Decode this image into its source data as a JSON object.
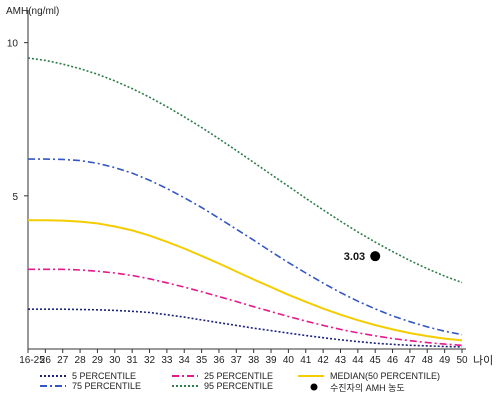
{
  "chart_data": {
    "type": "line",
    "title": "",
    "ylabel": "AMH(ng/ml)",
    "xlabel": "나이",
    "ylim": [
      0,
      11
    ],
    "yticks": [
      5,
      10
    ],
    "x": [
      "16-25",
      "26",
      "27",
      "28",
      "29",
      "30",
      "31",
      "32",
      "33",
      "34",
      "35",
      "36",
      "37",
      "38",
      "39",
      "40",
      "41",
      "42",
      "43",
      "44",
      "45",
      "46",
      "47",
      "48",
      "49",
      "50"
    ],
    "series": [
      {
        "name": "5 PERCENTILE",
        "color": "#1a237e",
        "dash": "2,2",
        "values": [
          1.3,
          1.3,
          1.3,
          1.29,
          1.28,
          1.26,
          1.23,
          1.19,
          1.12,
          1.04,
          0.95,
          0.86,
          0.77,
          0.68,
          0.6,
          0.52,
          0.44,
          0.37,
          0.3,
          0.24,
          0.19,
          0.15,
          0.12,
          0.1,
          0.08,
          0.07
        ]
      },
      {
        "name": "25 PERCENTILE",
        "color": "#e6198a",
        "dash": "7,3,2,3",
        "values": [
          2.6,
          2.6,
          2.6,
          2.58,
          2.54,
          2.48,
          2.4,
          2.29,
          2.16,
          2.02,
          1.87,
          1.71,
          1.55,
          1.38,
          1.22,
          1.06,
          0.91,
          0.77,
          0.64,
          0.53,
          0.43,
          0.34,
          0.27,
          0.21,
          0.16,
          0.12
        ]
      },
      {
        "name": "MEDIAN(50 PERCENTILE)",
        "color": "#f4cc00",
        "dash": "",
        "values": [
          4.2,
          4.2,
          4.19,
          4.16,
          4.1,
          4.0,
          3.87,
          3.7,
          3.5,
          3.28,
          3.04,
          2.79,
          2.53,
          2.27,
          2.02,
          1.77,
          1.54,
          1.32,
          1.12,
          0.94,
          0.78,
          0.64,
          0.52,
          0.42,
          0.34,
          0.28
        ]
      },
      {
        "name": "75 PERCENTILE",
        "color": "#3457c4",
        "dash": "7,3,2,3",
        "values": [
          6.2,
          6.2,
          6.19,
          6.15,
          6.06,
          5.92,
          5.74,
          5.51,
          5.24,
          4.94,
          4.62,
          4.27,
          3.91,
          3.55,
          3.18,
          2.82,
          2.48,
          2.15,
          1.84,
          1.56,
          1.31,
          1.08,
          0.89,
          0.72,
          0.58,
          0.47
        ]
      },
      {
        "name": "95 PERCENTILE",
        "color": "#2e7d4a",
        "dash": "2,2",
        "values": [
          9.5,
          9.42,
          9.3,
          9.15,
          8.97,
          8.75,
          8.5,
          8.22,
          7.91,
          7.58,
          7.23,
          6.86,
          6.48,
          6.09,
          5.7,
          5.31,
          4.92,
          4.54,
          4.17,
          3.82,
          3.49,
          3.18,
          2.89,
          2.62,
          2.38,
          2.17
        ]
      }
    ],
    "highlight": {
      "x": "45",
      "y": 3.03,
      "label": "3.03",
      "legend": "수진자의 AMH 농도",
      "color": "#000000"
    },
    "legend_position": "bottom"
  }
}
